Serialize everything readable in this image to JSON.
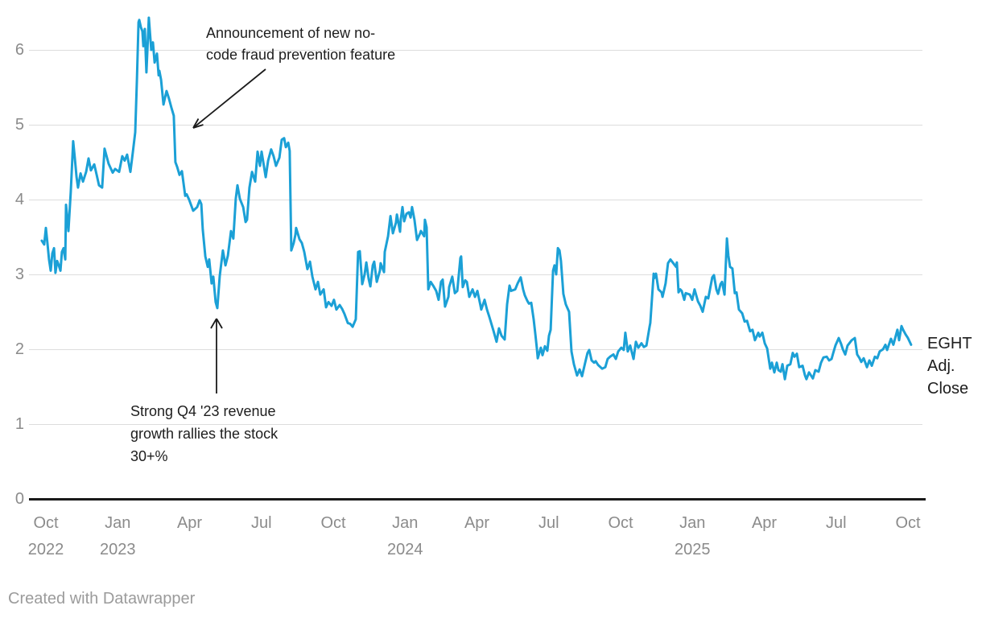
{
  "annotations": {
    "feature_announcement": "Announcement of new no-\ncode fraud prevention feature",
    "q4_rally": "Strong Q4 '23 revenue\ngrowth rallies the stock\n30+%"
  },
  "right_label": "EGHT\nAdj.\nClose",
  "footer": "Created with Datawrapper",
  "chart_data": {
    "type": "line",
    "title": "",
    "series_name": "EGHT Adj. Close",
    "x_unit": "months since Oct 2022",
    "xlim": [
      -0.2,
      36.2
    ],
    "ylim": [
      0,
      6.7
    ],
    "grid": "horizontal",
    "line_color": "#1ba0d6",
    "axis_color": "#1a1a1a",
    "grid_color": "#dddddd",
    "tick_label_color": "#8b8b8b",
    "y_ticks": [
      0,
      1,
      2,
      3,
      4,
      5,
      6
    ],
    "x_ticks": [
      {
        "m": 0,
        "label": "Oct",
        "year": "2022"
      },
      {
        "m": 3,
        "label": "Jan",
        "year": "2023"
      },
      {
        "m": 6,
        "label": "Apr"
      },
      {
        "m": 9,
        "label": "Jul"
      },
      {
        "m": 12,
        "label": "Oct"
      },
      {
        "m": 15,
        "label": "Jan",
        "year": "2024"
      },
      {
        "m": 18,
        "label": "Apr"
      },
      {
        "m": 21,
        "label": "Jul"
      },
      {
        "m": 24,
        "label": "Oct"
      },
      {
        "m": 27,
        "label": "Jan",
        "year": "2025"
      },
      {
        "m": 30,
        "label": "Apr"
      },
      {
        "m": 33,
        "label": "Jul"
      },
      {
        "m": 36,
        "label": "Oct"
      }
    ],
    "points": [
      [
        -0.17,
        3.45
      ],
      [
        -0.07,
        3.4
      ],
      [
        0,
        3.62
      ],
      [
        0.07,
        3.4
      ],
      [
        0.13,
        3.2
      ],
      [
        0.2,
        3.05
      ],
      [
        0.27,
        3.28
      ],
      [
        0.34,
        3.35
      ],
      [
        0.4,
        3.02
      ],
      [
        0.47,
        3.18
      ],
      [
        0.54,
        3.12
      ],
      [
        0.61,
        3.05
      ],
      [
        0.67,
        3.3
      ],
      [
        0.74,
        3.35
      ],
      [
        0.81,
        3.2
      ],
      [
        0.84,
        3.93
      ],
      [
        0.91,
        3.7
      ],
      [
        0.94,
        3.58
      ],
      [
        1.04,
        4.1
      ],
      [
        1.14,
        4.78
      ],
      [
        1.21,
        4.55
      ],
      [
        1.28,
        4.3
      ],
      [
        1.34,
        4.16
      ],
      [
        1.45,
        4.35
      ],
      [
        1.55,
        4.24
      ],
      [
        1.68,
        4.37
      ],
      [
        1.78,
        4.55
      ],
      [
        1.88,
        4.39
      ],
      [
        2.02,
        4.47
      ],
      [
        2.12,
        4.33
      ],
      [
        2.22,
        4.19
      ],
      [
        2.35,
        4.16
      ],
      [
        2.45,
        4.68
      ],
      [
        2.62,
        4.48
      ],
      [
        2.79,
        4.36
      ],
      [
        2.89,
        4.41
      ],
      [
        3.06,
        4.37
      ],
      [
        3.19,
        4.58
      ],
      [
        3.29,
        4.52
      ],
      [
        3.39,
        4.6
      ],
      [
        3.53,
        4.37
      ],
      [
        3.63,
        4.63
      ],
      [
        3.73,
        4.9
      ],
      [
        3.8,
        5.6
      ],
      [
        3.87,
        6.37
      ],
      [
        3.9,
        6.4
      ],
      [
        3.97,
        6.3
      ],
      [
        4.03,
        6.25
      ],
      [
        4.07,
        6.05
      ],
      [
        4.13,
        6.28
      ],
      [
        4.2,
        5.7
      ],
      [
        4.3,
        6.43
      ],
      [
        4.4,
        6.0
      ],
      [
        4.47,
        6.1
      ],
      [
        4.54,
        5.83
      ],
      [
        4.64,
        5.95
      ],
      [
        4.71,
        5.66
      ],
      [
        4.74,
        5.72
      ],
      [
        4.81,
        5.6
      ],
      [
        4.91,
        5.27
      ],
      [
        5.04,
        5.45
      ],
      [
        5.14,
        5.35
      ],
      [
        5.24,
        5.23
      ],
      [
        5.34,
        5.12
      ],
      [
        5.41,
        4.5
      ],
      [
        5.48,
        4.44
      ],
      [
        5.58,
        4.33
      ],
      [
        5.68,
        4.38
      ],
      [
        5.82,
        4.05
      ],
      [
        5.88,
        4.07
      ],
      [
        5.98,
        4.0
      ],
      [
        6.15,
        3.85
      ],
      [
        6.32,
        3.9
      ],
      [
        6.42,
        3.99
      ],
      [
        6.49,
        3.94
      ],
      [
        6.55,
        3.6
      ],
      [
        6.66,
        3.24
      ],
      [
        6.76,
        3.1
      ],
      [
        6.82,
        3.2
      ],
      [
        6.92,
        2.88
      ],
      [
        6.99,
        2.97
      ],
      [
        7.09,
        2.63
      ],
      [
        7.16,
        2.55
      ],
      [
        7.26,
        2.98
      ],
      [
        7.39,
        3.32
      ],
      [
        7.5,
        3.12
      ],
      [
        7.6,
        3.25
      ],
      [
        7.73,
        3.58
      ],
      [
        7.83,
        3.48
      ],
      [
        7.93,
        4.01
      ],
      [
        8.0,
        4.19
      ],
      [
        8.1,
        4.01
      ],
      [
        8.24,
        3.9
      ],
      [
        8.34,
        3.7
      ],
      [
        8.4,
        3.73
      ],
      [
        8.5,
        4.16
      ],
      [
        8.61,
        4.37
      ],
      [
        8.74,
        4.24
      ],
      [
        8.84,
        4.64
      ],
      [
        8.94,
        4.45
      ],
      [
        9.01,
        4.64
      ],
      [
        9.18,
        4.3
      ],
      [
        9.28,
        4.52
      ],
      [
        9.41,
        4.67
      ],
      [
        9.51,
        4.58
      ],
      [
        9.61,
        4.45
      ],
      [
        9.75,
        4.56
      ],
      [
        9.85,
        4.8
      ],
      [
        9.95,
        4.82
      ],
      [
        10.02,
        4.7
      ],
      [
        10.12,
        4.76
      ],
      [
        10.18,
        4.65
      ],
      [
        10.25,
        3.32
      ],
      [
        10.35,
        3.42
      ],
      [
        10.42,
        3.53
      ],
      [
        10.45,
        3.62
      ],
      [
        10.59,
        3.47
      ],
      [
        10.69,
        3.42
      ],
      [
        10.79,
        3.3
      ],
      [
        10.92,
        3.07
      ],
      [
        11.03,
        3.17
      ],
      [
        11.13,
        2.97
      ],
      [
        11.26,
        2.8
      ],
      [
        11.36,
        2.9
      ],
      [
        11.46,
        2.73
      ],
      [
        11.6,
        2.8
      ],
      [
        11.7,
        2.56
      ],
      [
        11.8,
        2.63
      ],
      [
        11.93,
        2.58
      ],
      [
        12.03,
        2.66
      ],
      [
        12.13,
        2.53
      ],
      [
        12.27,
        2.59
      ],
      [
        12.37,
        2.54
      ],
      [
        12.47,
        2.47
      ],
      [
        12.61,
        2.35
      ],
      [
        12.71,
        2.34
      ],
      [
        12.81,
        2.3
      ],
      [
        12.94,
        2.4
      ],
      [
        13.04,
        3.3
      ],
      [
        13.11,
        3.31
      ],
      [
        13.21,
        2.87
      ],
      [
        13.31,
        3.0
      ],
      [
        13.38,
        3.16
      ],
      [
        13.48,
        2.94
      ],
      [
        13.55,
        2.84
      ],
      [
        13.65,
        3.12
      ],
      [
        13.71,
        3.17
      ],
      [
        13.82,
        2.9
      ],
      [
        13.95,
        3.05
      ],
      [
        13.98,
        3.15
      ],
      [
        14.12,
        3.03
      ],
      [
        14.15,
        3.3
      ],
      [
        14.29,
        3.51
      ],
      [
        14.39,
        3.78
      ],
      [
        14.49,
        3.55
      ],
      [
        14.62,
        3.69
      ],
      [
        14.66,
        3.8
      ],
      [
        14.79,
        3.57
      ],
      [
        14.82,
        3.73
      ],
      [
        14.89,
        3.9
      ],
      [
        14.96,
        3.71
      ],
      [
        15.06,
        3.81
      ],
      [
        15.16,
        3.83
      ],
      [
        15.23,
        3.76
      ],
      [
        15.29,
        3.9
      ],
      [
        15.39,
        3.73
      ],
      [
        15.5,
        3.46
      ],
      [
        15.63,
        3.55
      ],
      [
        15.66,
        3.58
      ],
      [
        15.8,
        3.51
      ],
      [
        15.83,
        3.73
      ],
      [
        15.9,
        3.63
      ],
      [
        15.97,
        2.8
      ],
      [
        16.07,
        2.9
      ],
      [
        16.17,
        2.85
      ],
      [
        16.3,
        2.78
      ],
      [
        16.4,
        2.66
      ],
      [
        16.5,
        2.9
      ],
      [
        16.57,
        2.93
      ],
      [
        16.67,
        2.57
      ],
      [
        16.81,
        2.7
      ],
      [
        16.84,
        2.83
      ],
      [
        16.97,
        2.97
      ],
      [
        17.08,
        2.75
      ],
      [
        17.18,
        2.78
      ],
      [
        17.31,
        3.22
      ],
      [
        17.34,
        3.24
      ],
      [
        17.41,
        2.83
      ],
      [
        17.51,
        2.92
      ],
      [
        17.58,
        2.9
      ],
      [
        17.68,
        2.7
      ],
      [
        17.82,
        2.8
      ],
      [
        17.92,
        2.7
      ],
      [
        18.02,
        2.78
      ],
      [
        18.15,
        2.58
      ],
      [
        18.18,
        2.53
      ],
      [
        18.32,
        2.66
      ],
      [
        18.42,
        2.53
      ],
      [
        18.52,
        2.43
      ],
      [
        18.69,
        2.25
      ],
      [
        18.82,
        2.1
      ],
      [
        18.92,
        2.28
      ],
      [
        19.03,
        2.18
      ],
      [
        19.16,
        2.13
      ],
      [
        19.26,
        2.6
      ],
      [
        19.36,
        2.85
      ],
      [
        19.43,
        2.78
      ],
      [
        19.6,
        2.8
      ],
      [
        19.7,
        2.88
      ],
      [
        19.83,
        2.96
      ],
      [
        19.93,
        2.8
      ],
      [
        20.0,
        2.72
      ],
      [
        20.1,
        2.65
      ],
      [
        20.17,
        2.61
      ],
      [
        20.27,
        2.62
      ],
      [
        20.37,
        2.4
      ],
      [
        20.44,
        2.2
      ],
      [
        20.5,
        2.02
      ],
      [
        20.54,
        1.88
      ],
      [
        20.67,
        2.02
      ],
      [
        20.74,
        1.92
      ],
      [
        20.84,
        2.04
      ],
      [
        20.94,
        1.98
      ],
      [
        21.01,
        2.18
      ],
      [
        21.08,
        2.26
      ],
      [
        21.18,
        3.05
      ],
      [
        21.24,
        3.12
      ],
      [
        21.31,
        3.0
      ],
      [
        21.38,
        3.35
      ],
      [
        21.45,
        3.32
      ],
      [
        21.51,
        3.18
      ],
      [
        21.61,
        2.74
      ],
      [
        21.71,
        2.6
      ],
      [
        21.85,
        2.5
      ],
      [
        21.95,
        1.97
      ],
      [
        22.05,
        1.8
      ],
      [
        22.18,
        1.65
      ],
      [
        22.29,
        1.73
      ],
      [
        22.39,
        1.64
      ],
      [
        22.52,
        1.82
      ],
      [
        22.62,
        1.95
      ],
      [
        22.69,
        1.99
      ],
      [
        22.79,
        1.85
      ],
      [
        22.89,
        1.82
      ],
      [
        22.96,
        1.84
      ],
      [
        23.06,
        1.79
      ],
      [
        23.23,
        1.74
      ],
      [
        23.36,
        1.76
      ],
      [
        23.46,
        1.87
      ],
      [
        23.56,
        1.9
      ],
      [
        23.7,
        1.93
      ],
      [
        23.8,
        1.87
      ],
      [
        23.9,
        1.97
      ],
      [
        24.03,
        2.02
      ],
      [
        24.13,
        1.99
      ],
      [
        24.2,
        2.22
      ],
      [
        24.3,
        1.97
      ],
      [
        24.4,
        2.05
      ],
      [
        24.54,
        1.87
      ],
      [
        24.64,
        2.1
      ],
      [
        24.74,
        2.02
      ],
      [
        24.87,
        2.08
      ],
      [
        24.97,
        2.03
      ],
      [
        25.08,
        2.05
      ],
      [
        25.21,
        2.3
      ],
      [
        25.24,
        2.35
      ],
      [
        25.38,
        3.01
      ],
      [
        25.41,
        2.95
      ],
      [
        25.48,
        3.01
      ],
      [
        25.58,
        2.8
      ],
      [
        25.71,
        2.76
      ],
      [
        25.75,
        2.7
      ],
      [
        25.88,
        2.88
      ],
      [
        25.98,
        3.15
      ],
      [
        26.08,
        3.2
      ],
      [
        26.15,
        3.17
      ],
      [
        26.32,
        3.1
      ],
      [
        26.35,
        3.16
      ],
      [
        26.42,
        2.76
      ],
      [
        26.49,
        2.8
      ],
      [
        26.55,
        2.78
      ],
      [
        26.66,
        2.66
      ],
      [
        26.72,
        2.75
      ],
      [
        26.89,
        2.73
      ],
      [
        26.99,
        2.66
      ],
      [
        27.09,
        2.8
      ],
      [
        27.23,
        2.64
      ],
      [
        27.33,
        2.58
      ],
      [
        27.43,
        2.5
      ],
      [
        27.56,
        2.7
      ],
      [
        27.66,
        2.68
      ],
      [
        27.83,
        2.96
      ],
      [
        27.9,
        2.99
      ],
      [
        28.0,
        2.8
      ],
      [
        28.07,
        2.74
      ],
      [
        28.17,
        2.87
      ],
      [
        28.24,
        2.9
      ],
      [
        28.34,
        2.73
      ],
      [
        28.44,
        3.48
      ],
      [
        28.5,
        3.25
      ],
      [
        28.57,
        3.1
      ],
      [
        28.67,
        3.08
      ],
      [
        28.77,
        2.75
      ],
      [
        28.84,
        2.76
      ],
      [
        28.94,
        2.53
      ],
      [
        29.08,
        2.48
      ],
      [
        29.18,
        2.37
      ],
      [
        29.28,
        2.38
      ],
      [
        29.41,
        2.24
      ],
      [
        29.51,
        2.26
      ],
      [
        29.61,
        2.12
      ],
      [
        29.75,
        2.22
      ],
      [
        29.81,
        2.17
      ],
      [
        29.92,
        2.22
      ],
      [
        30.02,
        2.08
      ],
      [
        30.12,
        2.01
      ],
      [
        30.25,
        1.74
      ],
      [
        30.32,
        1.82
      ],
      [
        30.42,
        1.69
      ],
      [
        30.52,
        1.82
      ],
      [
        30.59,
        1.72
      ],
      [
        30.69,
        1.7
      ],
      [
        30.76,
        1.8
      ],
      [
        30.86,
        1.6
      ],
      [
        30.96,
        1.78
      ],
      [
        31.09,
        1.8
      ],
      [
        31.19,
        1.95
      ],
      [
        31.26,
        1.9
      ],
      [
        31.36,
        1.94
      ],
      [
        31.46,
        1.76
      ],
      [
        31.6,
        1.78
      ],
      [
        31.7,
        1.65
      ],
      [
        31.76,
        1.6
      ],
      [
        31.87,
        1.69
      ],
      [
        31.97,
        1.64
      ],
      [
        32.03,
        1.61
      ],
      [
        32.13,
        1.72
      ],
      [
        32.27,
        1.7
      ],
      [
        32.37,
        1.82
      ],
      [
        32.47,
        1.89
      ],
      [
        32.61,
        1.9
      ],
      [
        32.71,
        1.85
      ],
      [
        32.81,
        1.87
      ],
      [
        32.87,
        1.94
      ],
      [
        32.97,
        2.05
      ],
      [
        33.11,
        2.15
      ],
      [
        33.21,
        2.07
      ],
      [
        33.28,
        2.0
      ],
      [
        33.38,
        1.93
      ],
      [
        33.48,
        2.05
      ],
      [
        33.65,
        2.12
      ],
      [
        33.78,
        2.15
      ],
      [
        33.88,
        1.93
      ],
      [
        33.98,
        1.88
      ],
      [
        34.05,
        1.83
      ],
      [
        34.15,
        1.88
      ],
      [
        34.29,
        1.76
      ],
      [
        34.39,
        1.85
      ],
      [
        34.49,
        1.78
      ],
      [
        34.62,
        1.9
      ],
      [
        34.72,
        1.88
      ],
      [
        34.82,
        1.97
      ],
      [
        34.96,
        2.0
      ],
      [
        35.06,
        2.06
      ],
      [
        35.13,
        1.99
      ],
      [
        35.29,
        2.14
      ],
      [
        35.39,
        2.06
      ],
      [
        35.56,
        2.26
      ],
      [
        35.63,
        2.12
      ],
      [
        35.73,
        2.31
      ],
      [
        35.8,
        2.26
      ],
      [
        35.9,
        2.2
      ],
      [
        36.0,
        2.15
      ],
      [
        36.13,
        2.06
      ]
    ]
  }
}
